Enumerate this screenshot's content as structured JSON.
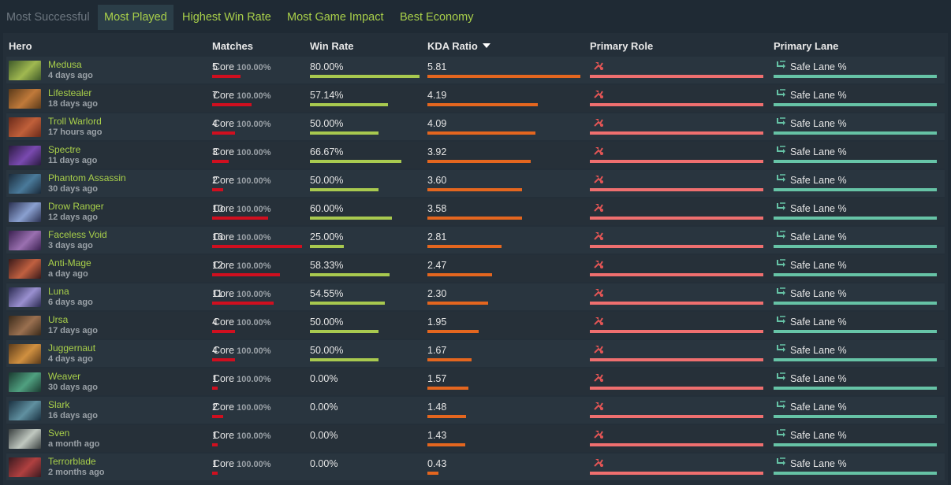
{
  "tabs": [
    {
      "label": "Most Successful",
      "state": "inactive"
    },
    {
      "label": "Most Played",
      "state": "active"
    },
    {
      "label": "Highest Win Rate",
      "state": "normal"
    },
    {
      "label": "Most Game Impact",
      "state": "normal"
    },
    {
      "label": "Best Economy",
      "state": "normal"
    }
  ],
  "columns": {
    "hero": "Hero",
    "matches": "Matches",
    "win_rate": "Win Rate",
    "kda": "KDA Ratio",
    "role": "Primary Role",
    "lane": "Primary Lane"
  },
  "colors": {
    "accent_green": "#a9d04a",
    "matches_bar": "#d00f1f",
    "win_bar": "#a8c94f",
    "kda_bar": "#e4661f",
    "role_bar": "#ef6f6f",
    "lane_bar": "#66c3a6"
  },
  "icons": {
    "role": "core-role-icon",
    "lane": "safe-lane-icon",
    "sort": "sort-desc-icon"
  },
  "heroes": [
    {
      "name": "Medusa",
      "ago": "4 days ago",
      "matches": "5",
      "win_rate": "80.00%",
      "kda": "5.81",
      "role": "Core",
      "role_pct": "100.00%",
      "lane": "Safe Lane %",
      "avatar_colors": [
        "#3f5a2a",
        "#a0b850"
      ]
    },
    {
      "name": "Lifestealer",
      "ago": "18 days ago",
      "matches": "7",
      "win_rate": "57.14%",
      "kda": "4.19",
      "role": "Core",
      "role_pct": "100.00%",
      "lane": "Safe Lane %",
      "avatar_colors": [
        "#5a3a1a",
        "#c07a3a"
      ]
    },
    {
      "name": "Troll Warlord",
      "ago": "17 hours ago",
      "matches": "4",
      "win_rate": "50.00%",
      "kda": "4.09",
      "role": "Core",
      "role_pct": "100.00%",
      "lane": "Safe Lane %",
      "avatar_colors": [
        "#6a2a1a",
        "#c0603a"
      ]
    },
    {
      "name": "Spectre",
      "ago": "11 days ago",
      "matches": "3",
      "win_rate": "66.67%",
      "kda": "3.92",
      "role": "Core",
      "role_pct": "100.00%",
      "lane": "Safe Lane %",
      "avatar_colors": [
        "#2a1a40",
        "#7a4ab0"
      ]
    },
    {
      "name": "Phantom Assassin",
      "ago": "30 days ago",
      "matches": "2",
      "win_rate": "50.00%",
      "kda": "3.60",
      "role": "Core",
      "role_pct": "100.00%",
      "lane": "Safe Lane %",
      "avatar_colors": [
        "#1a2a3a",
        "#4a7a9a"
      ]
    },
    {
      "name": "Drow Ranger",
      "ago": "12 days ago",
      "matches": "10",
      "win_rate": "60.00%",
      "kda": "3.58",
      "role": "Core",
      "role_pct": "100.00%",
      "lane": "Safe Lane %",
      "avatar_colors": [
        "#2a3050",
        "#8aa0d0"
      ]
    },
    {
      "name": "Faceless Void",
      "ago": "3 days ago",
      "matches": "16",
      "win_rate": "25.00%",
      "kda": "2.81",
      "role": "Core",
      "role_pct": "100.00%",
      "lane": "Safe Lane %",
      "avatar_colors": [
        "#3a2050",
        "#9a70b0"
      ]
    },
    {
      "name": "Anti-Mage",
      "ago": "a day ago",
      "matches": "12",
      "win_rate": "58.33%",
      "kda": "2.47",
      "role": "Core",
      "role_pct": "100.00%",
      "lane": "Safe Lane %",
      "avatar_colors": [
        "#3a1a1a",
        "#c06040"
      ]
    },
    {
      "name": "Luna",
      "ago": "6 days ago",
      "matches": "11",
      "win_rate": "54.55%",
      "kda": "2.30",
      "role": "Core",
      "role_pct": "100.00%",
      "lane": "Safe Lane %",
      "avatar_colors": [
        "#2a2a50",
        "#9a90d0"
      ]
    },
    {
      "name": "Ursa",
      "ago": "17 days ago",
      "matches": "4",
      "win_rate": "50.00%",
      "kda": "1.95",
      "role": "Core",
      "role_pct": "100.00%",
      "lane": "Safe Lane %",
      "avatar_colors": [
        "#3a2a1a",
        "#9a7050"
      ]
    },
    {
      "name": "Juggernaut",
      "ago": "4 days ago",
      "matches": "4",
      "win_rate": "50.00%",
      "kda": "1.67",
      "role": "Core",
      "role_pct": "100.00%",
      "lane": "Safe Lane %",
      "avatar_colors": [
        "#5a3a1a",
        "#d09040"
      ]
    },
    {
      "name": "Weaver",
      "ago": "30 days ago",
      "matches": "1",
      "win_rate": "0.00%",
      "kda": "1.57",
      "role": "Core",
      "role_pct": "100.00%",
      "lane": "Safe Lane %",
      "avatar_colors": [
        "#1a3a30",
        "#50a080"
      ]
    },
    {
      "name": "Slark",
      "ago": "16 days ago",
      "matches": "2",
      "win_rate": "0.00%",
      "kda": "1.48",
      "role": "Core",
      "role_pct": "100.00%",
      "lane": "Safe Lane %",
      "avatar_colors": [
        "#1a3040",
        "#6090a0"
      ]
    },
    {
      "name": "Sven",
      "ago": "a month ago",
      "matches": "1",
      "win_rate": "0.00%",
      "kda": "1.43",
      "role": "Core",
      "role_pct": "100.00%",
      "lane": "Safe Lane %",
      "avatar_colors": [
        "#3a4040",
        "#c0c8c0"
      ]
    },
    {
      "name": "Terrorblade",
      "ago": "2 months ago",
      "matches": "1",
      "win_rate": "0.00%",
      "kda": "0.43",
      "role": "Core",
      "role_pct": "100.00%",
      "lane": "Safe Lane %",
      "avatar_colors": [
        "#3a1a20",
        "#b04040"
      ]
    }
  ]
}
